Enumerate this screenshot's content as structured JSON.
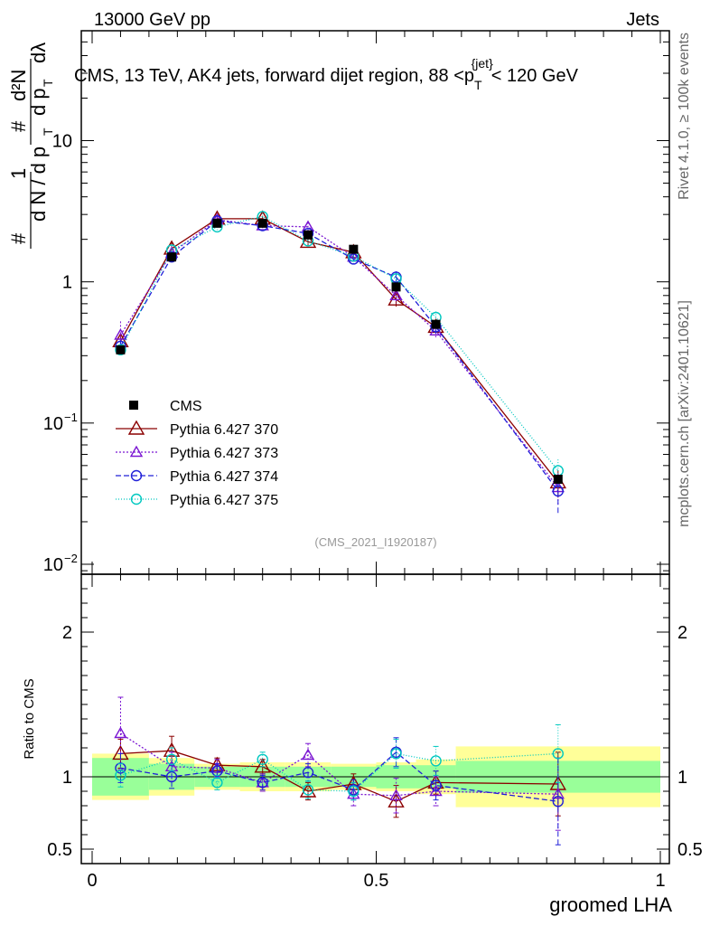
{
  "header": {
    "left": "13000 GeV pp",
    "right": "Jets"
  },
  "side": {
    "top": "Rivet 4.1.0, ≥ 100k events",
    "bottom": "mcplots.cern.ch [arXiv:2401.10621]"
  },
  "chart_data": {
    "type": "line",
    "title_prefix": "CMS, 13 TeV, AK4 jets, forward dijet region, 88 <p",
    "title_sub": "T",
    "title_sup": "{jet}",
    "title_suffix": "< 120 GeV",
    "watermark": "(CMS_2021_I1920187)",
    "xlabel": "groomed LHA",
    "ylabel_main_parts": [
      "#",
      "1",
      "d N / d p",
      "T",
      "#",
      "d p",
      "T",
      "dλ",
      "d²N"
    ],
    "ylabel_ratio": "Ratio to CMS",
    "xlim": [
      0,
      1
    ],
    "ylim_main": [
      0.0085,
      60
    ],
    "ylim_ratio": [
      0.4,
      2.4
    ],
    "x_ticks": [
      {
        "v": 0,
        "label": "0"
      },
      {
        "v": 0.5,
        "label": "0.5"
      },
      {
        "v": 1,
        "label": "1"
      }
    ],
    "y_ticks_main": [
      {
        "v": 0.01,
        "base": "10",
        "exp": "−2"
      },
      {
        "v": 0.1,
        "base": "10",
        "exp": "−1"
      },
      {
        "v": 1,
        "base": "1",
        "exp": ""
      },
      {
        "v": 10,
        "base": "10",
        "exp": ""
      }
    ],
    "y_ticks_ratio": [
      {
        "v": 0.5,
        "label": "0.5"
      },
      {
        "v": 1,
        "label": "1"
      },
      {
        "v": 2,
        "label": "2"
      }
    ],
    "bins": [
      {
        "lo": 0.0,
        "hi": 0.1
      },
      {
        "lo": 0.1,
        "hi": 0.18
      },
      {
        "lo": 0.18,
        "hi": 0.26
      },
      {
        "lo": 0.26,
        "hi": 0.34
      },
      {
        "lo": 0.34,
        "hi": 0.42
      },
      {
        "lo": 0.42,
        "hi": 0.5
      },
      {
        "lo": 0.5,
        "hi": 0.57
      },
      {
        "lo": 0.57,
        "hi": 0.64
      },
      {
        "lo": 0.64,
        "hi": 1.0
      }
    ],
    "x": [
      0.05,
      0.14,
      0.22,
      0.3,
      0.38,
      0.46,
      0.535,
      0.605,
      0.82
    ],
    "data": {
      "name": "CMS",
      "values": [
        0.33,
        1.5,
        2.6,
        2.6,
        2.15,
        1.7,
        0.92,
        0.5,
        0.04
      ],
      "band_green": [
        0.13,
        0.09,
        0.07,
        0.07,
        0.07,
        0.07,
        0.08,
        0.08,
        0.11
      ],
      "band_yellow": [
        0.16,
        0.13,
        0.09,
        0.1,
        0.1,
        0.09,
        0.1,
        0.12,
        0.21
      ]
    },
    "series": [
      {
        "name": "Pythia 6.427 370",
        "color": "#8b0000",
        "dash": "",
        "marker": "triangle-open",
        "values": [
          0.38,
          1.72,
          2.8,
          2.8,
          1.92,
          1.62,
          0.75,
          0.48,
          0.038
        ],
        "ratio": [
          1.16,
          1.18,
          1.08,
          1.07,
          0.9,
          0.95,
          0.83,
          0.96,
          0.95
        ],
        "ratio_err": [
          0.1,
          0.1,
          0.05,
          0.05,
          0.06,
          0.07,
          0.11,
          0.08,
          0.22
        ]
      },
      {
        "name": "Pythia 6.427 373",
        "color": "#7b16d2",
        "dash": "2,2",
        "marker": "triangle-open-small",
        "values": [
          0.42,
          1.6,
          2.75,
          2.5,
          2.45,
          1.5,
          0.8,
          0.45,
          0.035
        ],
        "ratio": [
          1.3,
          1.07,
          1.06,
          0.96,
          1.15,
          0.88,
          0.87,
          0.9,
          0.88
        ],
        "ratio_err": [
          0.25,
          0.1,
          0.06,
          0.06,
          0.08,
          0.08,
          0.12,
          0.1,
          0.25
        ]
      },
      {
        "name": "Pythia 6.427 374",
        "color": "#2020d8",
        "dash": "6,3",
        "marker": "circle-open",
        "values": [
          0.35,
          1.5,
          2.7,
          2.5,
          2.2,
          1.45,
          1.08,
          0.48,
          0.033
        ],
        "ratio": [
          1.06,
          1.0,
          1.04,
          0.96,
          1.03,
          0.91,
          1.17,
          0.94,
          0.83
        ],
        "ratio_err": [
          0.1,
          0.08,
          0.05,
          0.05,
          0.06,
          0.07,
          0.1,
          0.1,
          0.3
        ]
      },
      {
        "name": "Pythia 6.427 375",
        "color": "#00c8c0",
        "dash": "1,2",
        "marker": "circle-open",
        "values": [
          0.33,
          1.68,
          2.45,
          2.9,
          1.95,
          1.52,
          1.05,
          0.56,
          0.046
        ],
        "ratio": [
          1.01,
          1.12,
          0.96,
          1.12,
          0.91,
          0.9,
          1.16,
          1.11,
          1.16
        ],
        "ratio_err": [
          0.08,
          0.08,
          0.05,
          0.05,
          0.06,
          0.06,
          0.1,
          0.1,
          0.2
        ]
      }
    ],
    "legend_position": "lower-left"
  }
}
